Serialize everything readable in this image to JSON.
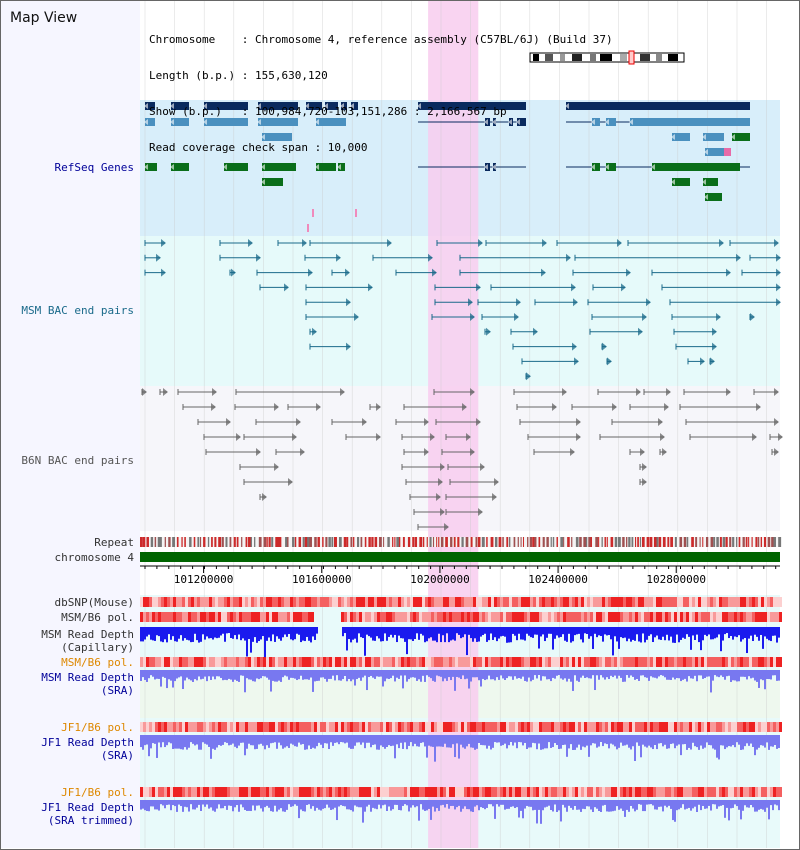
{
  "view_title": "Map View",
  "info_lines": [
    "Chromosome    : Chromosome 4, reference assembly (C57BL/6J) (Build 37)",
    "Length (b.p.) : 155,630,120",
    "Show (b.p.)   : 100,984,720-103,151,286 : 2,166,567 bp",
    "Read coverage check span : 10,000"
  ],
  "tracks": {
    "refseq": "RefSeq Genes",
    "msm_bac": "MSM BAC end pairs",
    "b6n_bac": "B6N BAC end pairs",
    "repeat": "Repeat",
    "chromosome": "chromosome 4",
    "dbsnp": "dbSNP(Mouse)",
    "msm_b6_pol_1": "MSM/B6 pol.",
    "msm_depth_cap_1": "MSM Read Depth",
    "msm_depth_cap_2": "(Capillary)",
    "msm_b6_pol_2": "MSM/B6 pol.",
    "msm_depth_sra_1": "MSM Read Depth",
    "msm_depth_sra_2": "(SRA)",
    "jf1_b6_pol_1": "JF1/B6 pol.",
    "jf1_depth_sra_1": "JF1 Read Depth",
    "jf1_depth_sra_2": "(SRA)",
    "jf1_b6_pol_2": "JF1/B6 pol.",
    "jf1_depth_trim_1": "JF1 Read Depth",
    "jf1_depth_trim_2": "(SRA trimmed)"
  },
  "axis": {
    "range_start": 100984720,
    "range_end": 103151286,
    "tick_labels": [
      "101200000",
      "101600000",
      "102000000",
      "102400000",
      "102800000"
    ],
    "tick_values": [
      101200000,
      101600000,
      102000000,
      102400000,
      102800000
    ]
  },
  "highlight": {
    "start": 101960000,
    "end": 102130000
  },
  "colors": {
    "refseq_bg": "#d8eefa",
    "msm_bg": "#e6fafa",
    "b6n_bg": "#f6f6fa",
    "highlight": "#f8ccee",
    "gene_dark": "#0a2a5e",
    "gene_mid": "#4a90bf",
    "gene_green": "#0a6e1a",
    "chrom_green": "#006400",
    "pair_msm": "#1a6a8a",
    "pair_b6n": "#666666",
    "depth_blue": "#1a1aee",
    "depth_light": "#7878f0",
    "label_navy": "#000099",
    "label_orange": "#dd8800",
    "label_gray": "#555555"
  }
}
